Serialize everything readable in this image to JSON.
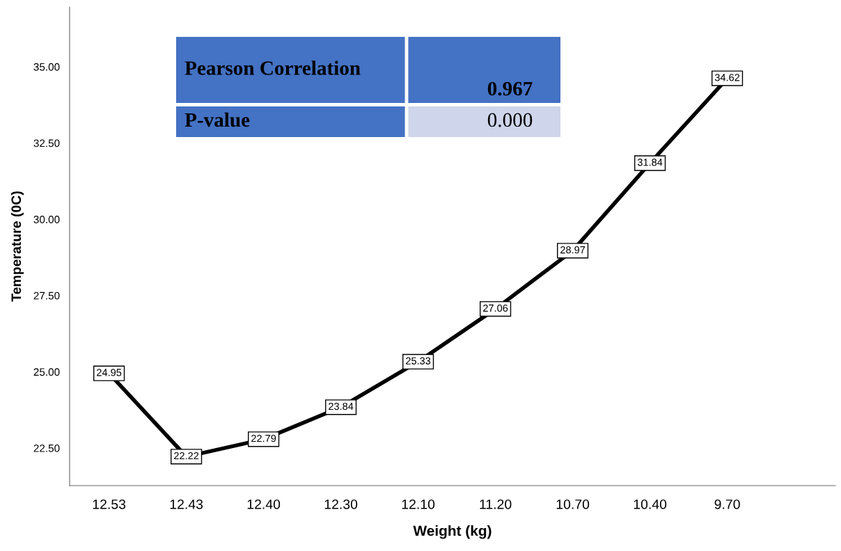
{
  "chart_data": {
    "type": "line",
    "xlabel": "Weight (kg)",
    "ylabel": "Temperature (0C)",
    "categories": [
      "12.53",
      "12.43",
      "12.40",
      "12.30",
      "12.10",
      "11.20",
      "10.70",
      "10.40",
      "9.70"
    ],
    "series": [
      {
        "color": "#000000",
        "values": [
          24.95,
          22.22,
          22.79,
          23.84,
          25.33,
          27.06,
          28.97,
          31.84,
          34.62
        ]
      }
    ],
    "data_labels": true,
    "ylim": [
      21.27,
      36.96
    ],
    "yticks": [
      {
        "value": 22.5,
        "label": "22.50"
      },
      {
        "value": 25,
        "label": "25.00"
      },
      {
        "value": 27.5,
        "label": "27.50"
      },
      {
        "value": 30,
        "label": "30.00"
      },
      {
        "value": 32.5,
        "label": "32.50"
      },
      {
        "value": 35,
        "label": "35.00"
      }
    ],
    "grid": false,
    "marker": "square",
    "line_style": "solid",
    "annotations": [
      "Pearson Correlation",
      "0.967",
      "P-value",
      "0.000"
    ]
  }
}
